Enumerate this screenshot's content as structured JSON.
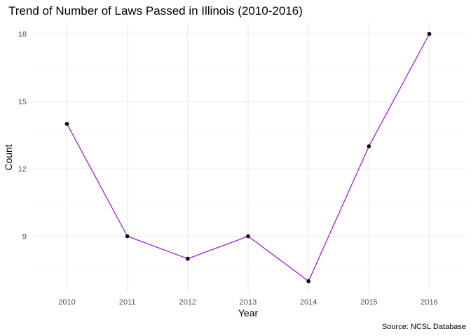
{
  "chart_data": {
    "type": "line",
    "title": "Trend of Number of Laws Passed in Illinois (2010-2016)",
    "xlabel": "Year",
    "ylabel": "Count",
    "caption": "Source: NCSL Database",
    "x": [
      2010,
      2011,
      2012,
      2013,
      2014,
      2015,
      2016
    ],
    "y_ticks": [
      9,
      12,
      15,
      18
    ],
    "ylim": [
      7,
      18
    ],
    "grid": true,
    "legend": "none",
    "series": [
      {
        "values": [
          14,
          9,
          8,
          9,
          7,
          13,
          18
        ],
        "line_color": "#a020f0",
        "point_color": "#000000"
      }
    ]
  }
}
